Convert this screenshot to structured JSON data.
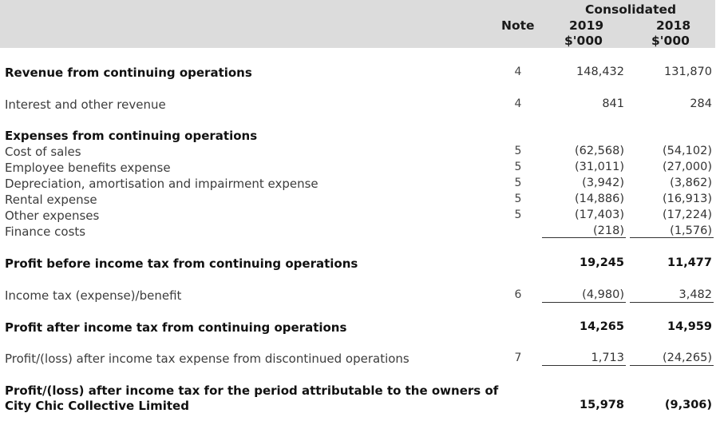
{
  "header": {
    "group": "Consolidated",
    "note": "Note",
    "year_2019": "2019",
    "year_2018": "2018",
    "unit_2019": "$'000",
    "unit_2018": "$'000"
  },
  "rows": {
    "revenue": {
      "label": "Revenue from continuing operations",
      "note": "4",
      "v2019": "148,432",
      "v2018": "131,870"
    },
    "interest": {
      "label": "Interest and other revenue",
      "note": "4",
      "v2019": "841",
      "v2018": "284"
    },
    "expenses_heading": {
      "label": "Expenses from continuing operations"
    },
    "cost_of_sales": {
      "label": "Cost of sales",
      "note": "5",
      "v2019": "(62,568)",
      "v2018": "(54,102)"
    },
    "employee": {
      "label": "Employee benefits expense",
      "note": "5",
      "v2019": "(31,011)",
      "v2018": "(27,000)"
    },
    "depreciation": {
      "label": "Depreciation, amortisation and impairment expense",
      "note": "5",
      "v2019": "(3,942)",
      "v2018": "(3,862)"
    },
    "rental": {
      "label": "Rental expense",
      "note": "5",
      "v2019": "(14,886)",
      "v2018": "(16,913)"
    },
    "other": {
      "label": "Other expenses",
      "note": "5",
      "v2019": "(17,403)",
      "v2018": "(17,224)"
    },
    "finance": {
      "label": "Finance costs",
      "v2019": "(218)",
      "v2018": "(1,576)"
    },
    "profit_before_tax": {
      "label": "Profit before income tax from continuing operations",
      "v2019": "19,245",
      "v2018": "11,477"
    },
    "income_tax": {
      "label": "Income tax (expense)/benefit",
      "note": "6",
      "v2019": "(4,980)",
      "v2018": "3,482"
    },
    "profit_after_tax": {
      "label": "Profit after income tax from continuing operations",
      "v2019": "14,265",
      "v2018": "14,959"
    },
    "discontinued": {
      "label": "Profit/(loss) after income tax expense from discontinued operations",
      "note": "7",
      "v2019": "1,713",
      "v2018": "(24,265)"
    },
    "attributable": {
      "label_line1": "Profit/(loss) after income tax for the period attributable to the owners of",
      "label_line2": "City Chic Collective Limited",
      "v2019": "15,978",
      "v2018": "(9,306)"
    }
  }
}
